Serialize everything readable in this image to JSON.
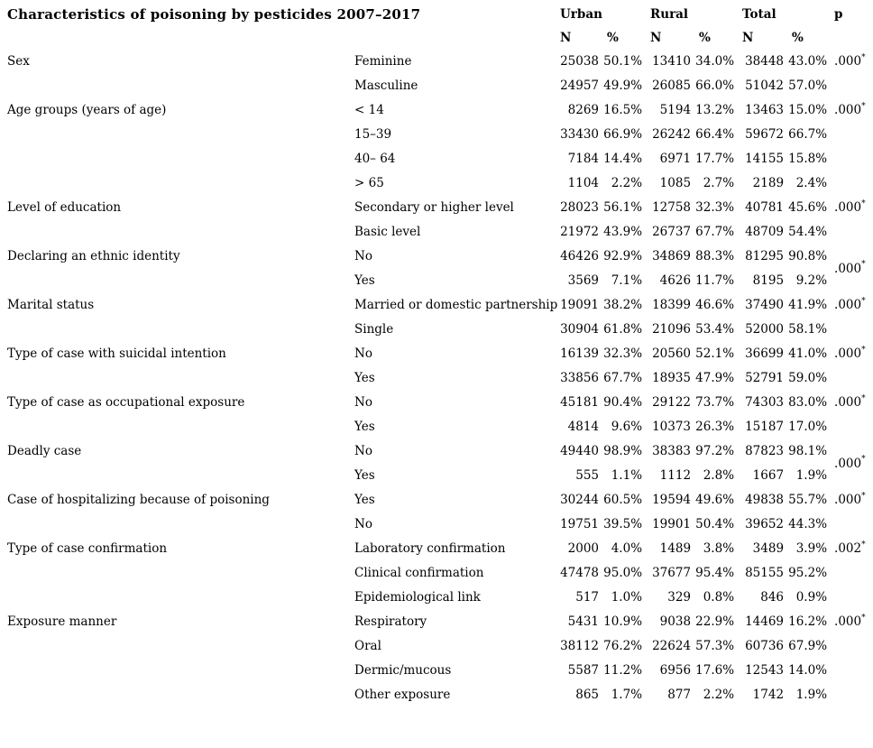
{
  "table": {
    "title": "Characteristics of poisoning by pesticides 2007–2017",
    "headers": {
      "urban": "Urban",
      "rural": "Rural",
      "total": "Total",
      "p": "p",
      "n": "N",
      "pct": "%"
    },
    "groups": [
      {
        "label": "Sex",
        "p": ".000",
        "p_star": "*",
        "p_position": "first",
        "rows": [
          {
            "label": "Feminine",
            "urban_n": "25038",
            "urban_pct": "50.1%",
            "rural_n": "13410",
            "rural_pct": "34.0%",
            "total_n": "38448",
            "total_pct": "43.0%"
          },
          {
            "label": "Masculine",
            "urban_n": "24957",
            "urban_pct": "49.9%",
            "rural_n": "26085",
            "rural_pct": "66.0%",
            "total_n": "51042",
            "total_pct": "57.0%"
          }
        ]
      },
      {
        "label": "Age groups (years of age)",
        "p": ".000",
        "p_star": "*",
        "p_position": "first",
        "rows": [
          {
            "label": "< 14",
            "urban_n": "8269",
            "urban_pct": "16.5%",
            "rural_n": "5194",
            "rural_pct": "13.2%",
            "total_n": "13463",
            "total_pct": "15.0%"
          },
          {
            "label": "15–39",
            "urban_n": "33430",
            "urban_pct": "66.9%",
            "rural_n": "26242",
            "rural_pct": "66.4%",
            "total_n": "59672",
            "total_pct": "66.7%"
          },
          {
            "label": "40– 64",
            "urban_n": "7184",
            "urban_pct": "14.4%",
            "rural_n": "6971",
            "rural_pct": "17.7%",
            "total_n": "14155",
            "total_pct": "15.8%"
          },
          {
            "label": "> 65",
            "urban_n": "1104",
            "urban_pct": "2.2%",
            "rural_n": "1085",
            "rural_pct": "2.7%",
            "total_n": "2189",
            "total_pct": "2.4%"
          }
        ]
      },
      {
        "label": "Level of education",
        "p": ".000",
        "p_star": "*",
        "p_position": "first",
        "rows": [
          {
            "label": "Secondary or higher level",
            "urban_n": "28023",
            "urban_pct": "56.1%",
            "rural_n": "12758",
            "rural_pct": "32.3%",
            "total_n": "40781",
            "total_pct": "45.6%"
          },
          {
            "label": "Basic level",
            "urban_n": "21972",
            "urban_pct": "43.9%",
            "rural_n": "26737",
            "rural_pct": "67.7%",
            "total_n": "48709",
            "total_pct": "54.4%"
          }
        ]
      },
      {
        "label": "Declaring an ethnic identity",
        "p": ".000",
        "p_star": "*",
        "p_position": "center",
        "rows": [
          {
            "label": "No",
            "urban_n": "46426",
            "urban_pct": "92.9%",
            "rural_n": "34869",
            "rural_pct": "88.3%",
            "total_n": "81295",
            "total_pct": "90.8%"
          },
          {
            "label": "Yes",
            "urban_n": "3569",
            "urban_pct": "7.1%",
            "rural_n": "4626",
            "rural_pct": "11.7%",
            "total_n": "8195",
            "total_pct": "9.2%"
          }
        ]
      },
      {
        "label": "Marital status",
        "p": ".000",
        "p_star": "*",
        "p_position": "first",
        "rows": [
          {
            "label": "Married or domestic partnership",
            "urban_n": "19091",
            "urban_pct": "38.2%",
            "rural_n": "18399",
            "rural_pct": "46.6%",
            "total_n": "37490",
            "total_pct": "41.9%"
          },
          {
            "label": "Single",
            "urban_n": "30904",
            "urban_pct": "61.8%",
            "rural_n": "21096",
            "rural_pct": "53.4%",
            "total_n": "52000",
            "total_pct": "58.1%"
          }
        ]
      },
      {
        "label": "Type of case with suicidal intention",
        "p": ".000",
        "p_star": "*",
        "p_position": "first",
        "rows": [
          {
            "label": "No",
            "urban_n": "16139",
            "urban_pct": "32.3%",
            "rural_n": "20560",
            "rural_pct": "52.1%",
            "total_n": "36699",
            "total_pct": "41.0%"
          },
          {
            "label": "Yes",
            "urban_n": "33856",
            "urban_pct": "67.7%",
            "rural_n": "18935",
            "rural_pct": "47.9%",
            "total_n": "52791",
            "total_pct": "59.0%"
          }
        ]
      },
      {
        "label": "Type of case as occupational exposure",
        "p": ".000",
        "p_star": "*",
        "p_position": "first",
        "rows": [
          {
            "label": "No",
            "urban_n": "45181",
            "urban_pct": "90.4%",
            "rural_n": "29122",
            "rural_pct": "73.7%",
            "total_n": "74303",
            "total_pct": "83.0%"
          },
          {
            "label": "Yes",
            "urban_n": "4814",
            "urban_pct": "9.6%",
            "rural_n": "10373",
            "rural_pct": "26.3%",
            "total_n": "15187",
            "total_pct": "17.0%"
          }
        ]
      },
      {
        "label": "Deadly case",
        "p": ".000",
        "p_star": "*",
        "p_position": "center",
        "rows": [
          {
            "label": "No",
            "urban_n": "49440",
            "urban_pct": "98.9%",
            "rural_n": "38383",
            "rural_pct": "97.2%",
            "total_n": "87823",
            "total_pct": "98.1%"
          },
          {
            "label": "Yes",
            "urban_n": "555",
            "urban_pct": "1.1%",
            "rural_n": "1112",
            "rural_pct": "2.8%",
            "total_n": "1667",
            "total_pct": "1.9%"
          }
        ]
      },
      {
        "label": "Case of hospitalizing because of poisoning",
        "p": ".000",
        "p_star": "*",
        "p_position": "first",
        "rows": [
          {
            "label": "Yes",
            "urban_n": "30244",
            "urban_pct": "60.5%",
            "rural_n": "19594",
            "rural_pct": "49.6%",
            "total_n": "49838",
            "total_pct": "55.7%"
          },
          {
            "label": "No",
            "urban_n": "19751",
            "urban_pct": "39.5%",
            "rural_n": "19901",
            "rural_pct": "50.4%",
            "total_n": "39652",
            "total_pct": "44.3%"
          }
        ]
      },
      {
        "label": "Type of case confirmation",
        "p": ".002",
        "p_star": "*",
        "p_position": "first",
        "rows": [
          {
            "label": "Laboratory confirmation",
            "urban_n": "2000",
            "urban_pct": "4.0%",
            "rural_n": "1489",
            "rural_pct": "3.8%",
            "total_n": "3489",
            "total_pct": "3.9%"
          },
          {
            "label": "Clinical confirmation",
            "urban_n": "47478",
            "urban_pct": "95.0%",
            "rural_n": "37677",
            "rural_pct": "95.4%",
            "total_n": "85155",
            "total_pct": "95.2%"
          },
          {
            "label": "Epidemiological link",
            "urban_n": "517",
            "urban_pct": "1.0%",
            "rural_n": "329",
            "rural_pct": "0.8%",
            "total_n": "846",
            "total_pct": "0.9%"
          }
        ]
      },
      {
        "label": "Exposure manner",
        "p": ".000",
        "p_star": "*",
        "p_position": "first",
        "rows": [
          {
            "label": "Respiratory",
            "urban_n": "5431",
            "urban_pct": "10.9%",
            "rural_n": "9038",
            "rural_pct": "22.9%",
            "total_n": "14469",
            "total_pct": "16.2%"
          },
          {
            "label": "Oral",
            "urban_n": "38112",
            "urban_pct": "76.2%",
            "rural_n": "22624",
            "rural_pct": "57.3%",
            "total_n": "60736",
            "total_pct": "67.9%"
          },
          {
            "label": "Dermic/mucous",
            "urban_n": "5587",
            "urban_pct": "11.2%",
            "rural_n": "6956",
            "rural_pct": "17.6%",
            "total_n": "12543",
            "total_pct": "14.0%"
          },
          {
            "label": "Other exposure",
            "urban_n": "865",
            "urban_pct": "1.7%",
            "rural_n": "877",
            "rural_pct": "2.2%",
            "total_n": "1742",
            "total_pct": "1.9%"
          }
        ]
      }
    ]
  }
}
